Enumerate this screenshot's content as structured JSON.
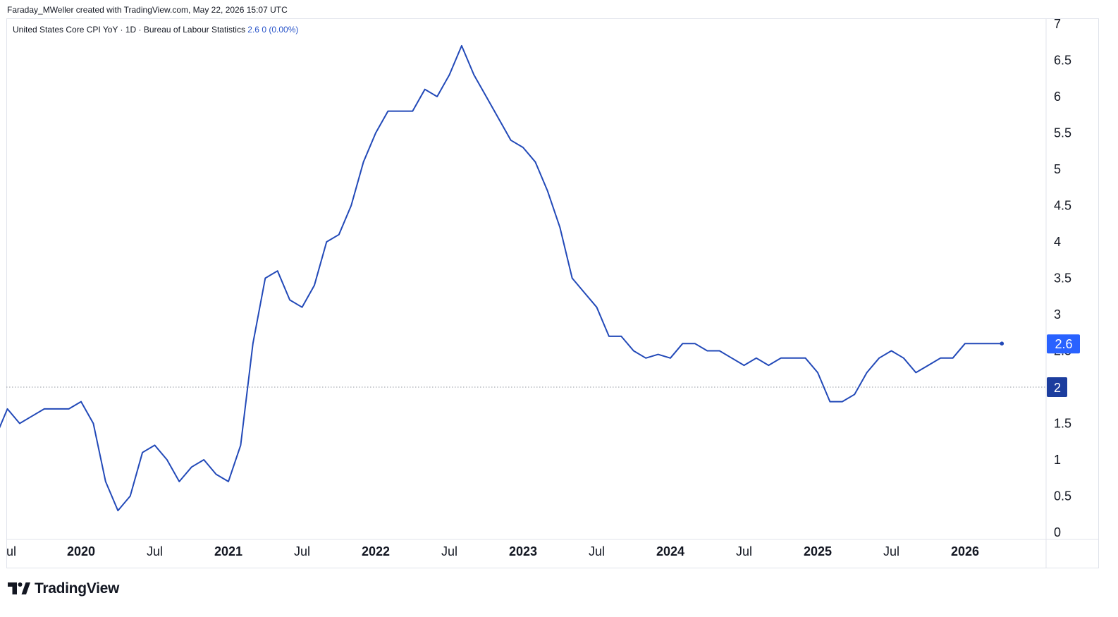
{
  "header": {
    "attribution": "Faraday_MWeller created with TradingView.com, May 22, 2026 15:07 UTC"
  },
  "legend": {
    "series_title": "United States Core CPI YoY · 1D · Bureau of Labour Statistics",
    "last_value": "2.6",
    "change": "0 (0.00%)"
  },
  "brand": {
    "name": "TradingView",
    "icon": "tradingview-logo-icon"
  },
  "colors": {
    "line": "#2249b8",
    "label_bg_current": "#2962ff",
    "label_bg_ref": "#1c3d9e",
    "ref_line": "#9598a1",
    "grid_border": "#e0e3eb"
  },
  "chart_data": {
    "type": "line",
    "title": "United States Core CPI YoY · 1D · Bureau of Labour Statistics",
    "ylim": [
      0,
      7
    ],
    "y_ticks": [
      "0",
      "0.5",
      "1",
      "1.5",
      "2",
      "2.5",
      "3",
      "3.5",
      "4",
      "4.5",
      "5",
      "5.5",
      "6",
      "6.5",
      "7"
    ],
    "x_ticks": [
      {
        "label": "ul",
        "date": "2019-07-01",
        "bold": false
      },
      {
        "label": "2020",
        "date": "2020-01-01",
        "bold": true
      },
      {
        "label": "Jul",
        "date": "2020-07-01",
        "bold": false
      },
      {
        "label": "2021",
        "date": "2021-01-01",
        "bold": true
      },
      {
        "label": "Jul",
        "date": "2021-07-01",
        "bold": false
      },
      {
        "label": "2022",
        "date": "2022-01-01",
        "bold": true
      },
      {
        "label": "Jul",
        "date": "2022-07-01",
        "bold": false
      },
      {
        "label": "2023",
        "date": "2023-01-01",
        "bold": true
      },
      {
        "label": "Jul",
        "date": "2023-07-01",
        "bold": false
      },
      {
        "label": "2024",
        "date": "2024-01-01",
        "bold": true
      },
      {
        "label": "Jul",
        "date": "2024-07-01",
        "bold": false
      },
      {
        "label": "2025",
        "date": "2025-01-01",
        "bold": true
      },
      {
        "label": "Jul",
        "date": "2025-07-01",
        "bold": false
      },
      {
        "label": "2026",
        "date": "2026-01-01",
        "bold": true
      }
    ],
    "reference_line": {
      "value": 2,
      "label": "2",
      "style": "dotted"
    },
    "last_value_label": "2.6",
    "series": [
      {
        "x": [
          "2019-06",
          "2019-07",
          "2019-08",
          "2019-09",
          "2019-10",
          "2019-11",
          "2019-12",
          "2020-01",
          "2020-02",
          "2020-03",
          "2020-04",
          "2020-05",
          "2020-06",
          "2020-07",
          "2020-08",
          "2020-09",
          "2020-10",
          "2020-11",
          "2020-12",
          "2021-01",
          "2021-02",
          "2021-03",
          "2021-04",
          "2021-05",
          "2021-06",
          "2021-07",
          "2021-08",
          "2021-09",
          "2021-10",
          "2021-11",
          "2021-12",
          "2022-01",
          "2022-02",
          "2022-03",
          "2022-04",
          "2022-05",
          "2022-06",
          "2022-07",
          "2022-08",
          "2022-09",
          "2022-10",
          "2022-11",
          "2022-12",
          "2023-01",
          "2023-02",
          "2023-03",
          "2023-04",
          "2023-05",
          "2023-06",
          "2023-07",
          "2023-08",
          "2023-09",
          "2023-10",
          "2023-11",
          "2023-12",
          "2024-01",
          "2024-02",
          "2024-03",
          "2024-04",
          "2024-05",
          "2024-06",
          "2024-07",
          "2024-08",
          "2024-09",
          "2024-10",
          "2024-11",
          "2024-12",
          "2025-01",
          "2025-02",
          "2025-03",
          "2025-04",
          "2025-05",
          "2025-06",
          "2025-07",
          "2025-08",
          "2025-09",
          "2025-10",
          "2025-11",
          "2025-12",
          "2026-01",
          "2026-02",
          "2026-03",
          "2026-04"
        ],
        "values": [
          1.3,
          1.7,
          1.5,
          1.6,
          1.7,
          1.7,
          1.7,
          1.8,
          1.5,
          0.7,
          0.3,
          0.5,
          1.1,
          1.2,
          1.0,
          0.7,
          0.9,
          1.0,
          0.8,
          0.7,
          1.2,
          2.6,
          3.5,
          3.6,
          3.2,
          3.1,
          3.4,
          4.0,
          4.1,
          4.5,
          5.1,
          5.5,
          5.8,
          5.8,
          5.8,
          6.1,
          6.0,
          6.3,
          6.7,
          6.3,
          6.0,
          5.7,
          5.4,
          5.3,
          5.1,
          4.7,
          4.2,
          3.5,
          3.3,
          3.1,
          2.7,
          2.7,
          2.5,
          2.4,
          2.45,
          2.4,
          2.6,
          2.6,
          2.5,
          2.5,
          2.4,
          2.3,
          2.4,
          2.3,
          2.4,
          2.4,
          2.4,
          2.2,
          1.8,
          1.8,
          1.9,
          2.2,
          2.4,
          2.5,
          2.4,
          2.2,
          2.3,
          2.4,
          2.4,
          2.6,
          2.6,
          2.6,
          2.6
        ]
      }
    ]
  }
}
